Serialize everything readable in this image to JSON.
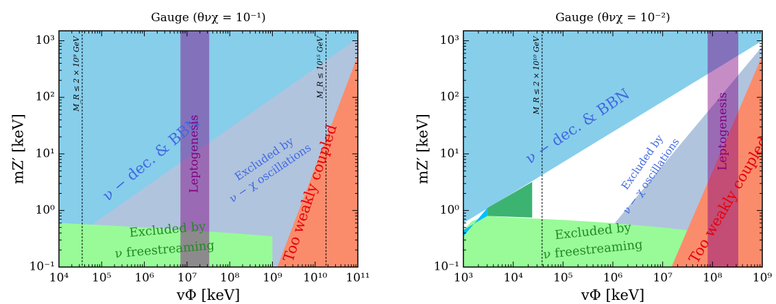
{
  "chart_data": [
    {
      "type": "area",
      "title": "Gauge    (θνχ = 10⁻¹)",
      "xlabel": "vΦ [keV]",
      "ylabel": "mZ′ [keV]",
      "x_scale": "log",
      "y_scale": "log",
      "xlim": [
        10000,
        100000000000
      ],
      "ylim": [
        0.1,
        1500
      ],
      "xticks": [
        {
          "v": 10000,
          "label": "10⁴"
        },
        {
          "v": 100000,
          "label": "10⁵"
        },
        {
          "v": 1000000,
          "label": "10⁶"
        },
        {
          "v": 10000000,
          "label": "10⁷"
        },
        {
          "v": 100000000,
          "label": "10⁸"
        },
        {
          "v": 1000000000,
          "label": "10⁹"
        },
        {
          "v": 10000000000,
          "label": "10¹⁰"
        },
        {
          "v": 100000000000,
          "label": "10¹¹"
        }
      ],
      "yticks": [
        {
          "v": 0.1,
          "label": "10⁻¹"
        },
        {
          "v": 1,
          "label": "10⁰"
        },
        {
          "v": 10,
          "label": "10¹"
        },
        {
          "v": 100,
          "label": "10²"
        },
        {
          "v": 1000,
          "label": "10³"
        }
      ],
      "regions": [
        {
          "name": "Excluded by ν − χ oscillations",
          "color": "#b0c4de",
          "points": [
            [
              10000,
              0.25
            ],
            [
              3000000000,
              700
            ],
            [
              100000000000,
              1500
            ],
            [
              100000000000,
              0.1
            ],
            [
              10000,
              0.1
            ]
          ]
        },
        {
          "name": "ν − dec. & BBN",
          "color": "#87ceeb",
          "points": [
            [
              10000,
              0.22
            ],
            [
              100000000000,
              1100
            ],
            [
              100000000000,
              1500
            ],
            [
              10000,
              1500
            ]
          ]
        },
        {
          "name": "Excluded by ν freestreaming",
          "color": "#98fb98",
          "points": [
            [
              10000,
              0.1
            ],
            [
              10000,
              0.6
            ],
            [
              100000,
              0.55
            ],
            [
              1000000,
              0.5
            ],
            [
              10000000,
              0.45
            ],
            [
              100000000,
              0.4
            ],
            [
              1000000000,
              0.35
            ],
            [
              1000000000,
              0.1
            ]
          ]
        },
        {
          "name": "Too weakly coupled",
          "color": "#fa8c6c",
          "points": [
            [
              1300000000,
              0.1
            ],
            [
              100000000000,
              550
            ],
            [
              100000000000,
              0.1
            ]
          ]
        },
        {
          "name": "Leptogenesis",
          "color": "#800080",
          "opacity": 0.45,
          "points": [
            [
              7000000,
              0.1
            ],
            [
              7000000,
              1500
            ],
            [
              33000000,
              1500
            ],
            [
              33000000,
              0.1
            ]
          ]
        }
      ],
      "lines": [
        {
          "x": 35000,
          "label": "M_R ≤ 2 × 10⁹ GeV"
        },
        {
          "x": 18000000000,
          "label": "M_R ≤ 10¹⁵ GeV"
        }
      ],
      "region_labels": [
        {
          "text": "ν − dec. & BBN",
          "x": 1500000,
          "y": 8,
          "angle": -40,
          "color": "#4169e1",
          "size": 22
        },
        {
          "text": "Excluded by",
          "x": 650000000,
          "y": 8,
          "angle": -34,
          "color": "#4169e1",
          "size": 16
        },
        {
          "text": "ν − χ oscillations",
          "x": 900000000,
          "y": 4.5,
          "angle": -34,
          "color": "#4169e1",
          "size": 16
        },
        {
          "text": "Leptogenesis",
          "x": 15000000,
          "y": 10,
          "angle": -90,
          "color": "#800080",
          "size": 17
        },
        {
          "text": "Too weakly coupled",
          "x": 8000000000,
          "y": 2,
          "angle": -72,
          "color": "#e8000b",
          "size": 21
        },
        {
          "text": "Excluded by",
          "x": 3500000,
          "y": 0.45,
          "angle": -5,
          "color": "#228b22",
          "size": 18
        },
        {
          "text": "ν freestreaming",
          "x": 3000000,
          "y": 0.2,
          "angle": -5,
          "color": "#228b22",
          "size": 18
        }
      ]
    },
    {
      "type": "area",
      "title": "Gauge    (θνχ = 10⁻²)",
      "xlabel": "vΦ [keV]",
      "ylabel": "mZ′ [keV]",
      "x_scale": "log",
      "y_scale": "log",
      "xlim": [
        1000,
        1000000000
      ],
      "ylim": [
        0.1,
        1500
      ],
      "xticks": [
        {
          "v": 1000,
          "label": "10³"
        },
        {
          "v": 10000,
          "label": "10⁴"
        },
        {
          "v": 100000,
          "label": "10⁵"
        },
        {
          "v": 1000000,
          "label": "10⁶"
        },
        {
          "v": 10000000,
          "label": "10⁷"
        },
        {
          "v": 100000000,
          "label": "10⁸"
        },
        {
          "v": 1000000000,
          "label": "10⁹"
        }
      ],
      "yticks": [
        {
          "v": 0.1,
          "label": "10⁻¹"
        },
        {
          "v": 1,
          "label": "10⁰"
        },
        {
          "v": 10,
          "label": "10¹"
        },
        {
          "v": 100,
          "label": "10²"
        },
        {
          "v": 1000,
          "label": "10³"
        }
      ],
      "regions": [
        {
          "name": "ν − dec. & BBN",
          "color": "#87ceeb",
          "points": [
            [
              1000,
              0.6
            ],
            [
              1000000000,
              1000
            ],
            [
              1000000000,
              1500
            ],
            [
              1000,
              1500
            ]
          ]
        },
        {
          "name": "Excluded by ν − χ oscillations",
          "color": "#b0c4de",
          "points": [
            [
              200000,
              0.1
            ],
            [
              1000000000,
              800
            ],
            [
              1000000000,
              0.1
            ]
          ]
        },
        {
          "name": "Excluded by ν freestreaming",
          "color": "#98fb98",
          "points": [
            [
              1000,
              0.1
            ],
            [
              1000,
              0.45
            ],
            [
              1500,
              0.65
            ],
            [
              3000,
              0.8
            ],
            [
              10000,
              0.75
            ],
            [
              100000,
              0.68
            ],
            [
              1000000,
              0.6
            ],
            [
              10000000,
              0.5
            ],
            [
              100000000,
              0.4
            ],
            [
              100000000,
              0.1
            ]
          ]
        },
        {
          "name": "",
          "color": "#00bfff",
          "points": [
            [
              1000,
              0.35
            ],
            [
              3000,
              1.1
            ],
            [
              3000,
              0.8
            ],
            [
              1000,
              0.45
            ]
          ]
        },
        {
          "name": "",
          "color": "#3cb371",
          "points": [
            [
              3000,
              0.8
            ],
            [
              3000,
              1.1
            ],
            [
              24000,
              3.2
            ],
            [
              24000,
              0.75
            ]
          ]
        },
        {
          "name": "Too weakly coupled",
          "color": "#fa8c6c",
          "points": [
            [
              15000000,
              0.1
            ],
            [
              1000000000,
              550
            ],
            [
              1000000000,
              0.1
            ]
          ]
        },
        {
          "name": "Leptogenesis",
          "color": "#800080",
          "opacity": 0.45,
          "points": [
            [
              80000000,
              0.1
            ],
            [
              80000000,
              1500
            ],
            [
              330000000,
              1500
            ],
            [
              330000000,
              0.1
            ]
          ]
        }
      ],
      "lines": [
        {
          "x": 38000,
          "label": "M_R ≤ 2 × 10¹⁰ GeV"
        }
      ],
      "region_labels": [
        {
          "text": "ν − dec. & BBN",
          "x": 200000,
          "y": 30,
          "angle": -34,
          "color": "#4169e1",
          "size": 22
        },
        {
          "text": "Excluded by",
          "x": 4000000,
          "y": 7,
          "angle": -55,
          "color": "#4169e1",
          "size": 15
        },
        {
          "text": "ν − χ oscillations",
          "x": 6000000,
          "y": 4,
          "angle": -55,
          "color": "#4169e1",
          "size": 15
        },
        {
          "text": "Leptogenesis",
          "x": 165000000,
          "y": 25,
          "angle": -90,
          "color": "#800080",
          "size": 17
        },
        {
          "text": "Too weakly coupled",
          "x": 220000000,
          "y": 1.5,
          "angle": -60,
          "color": "#e8000b",
          "size": 21
        },
        {
          "text": "Excluded by",
          "x": 400000,
          "y": 0.42,
          "angle": -6,
          "color": "#228b22",
          "size": 18
        },
        {
          "text": "ν freestreaming",
          "x": 400000,
          "y": 0.2,
          "angle": -6,
          "color": "#228b22",
          "size": 18
        }
      ]
    }
  ]
}
